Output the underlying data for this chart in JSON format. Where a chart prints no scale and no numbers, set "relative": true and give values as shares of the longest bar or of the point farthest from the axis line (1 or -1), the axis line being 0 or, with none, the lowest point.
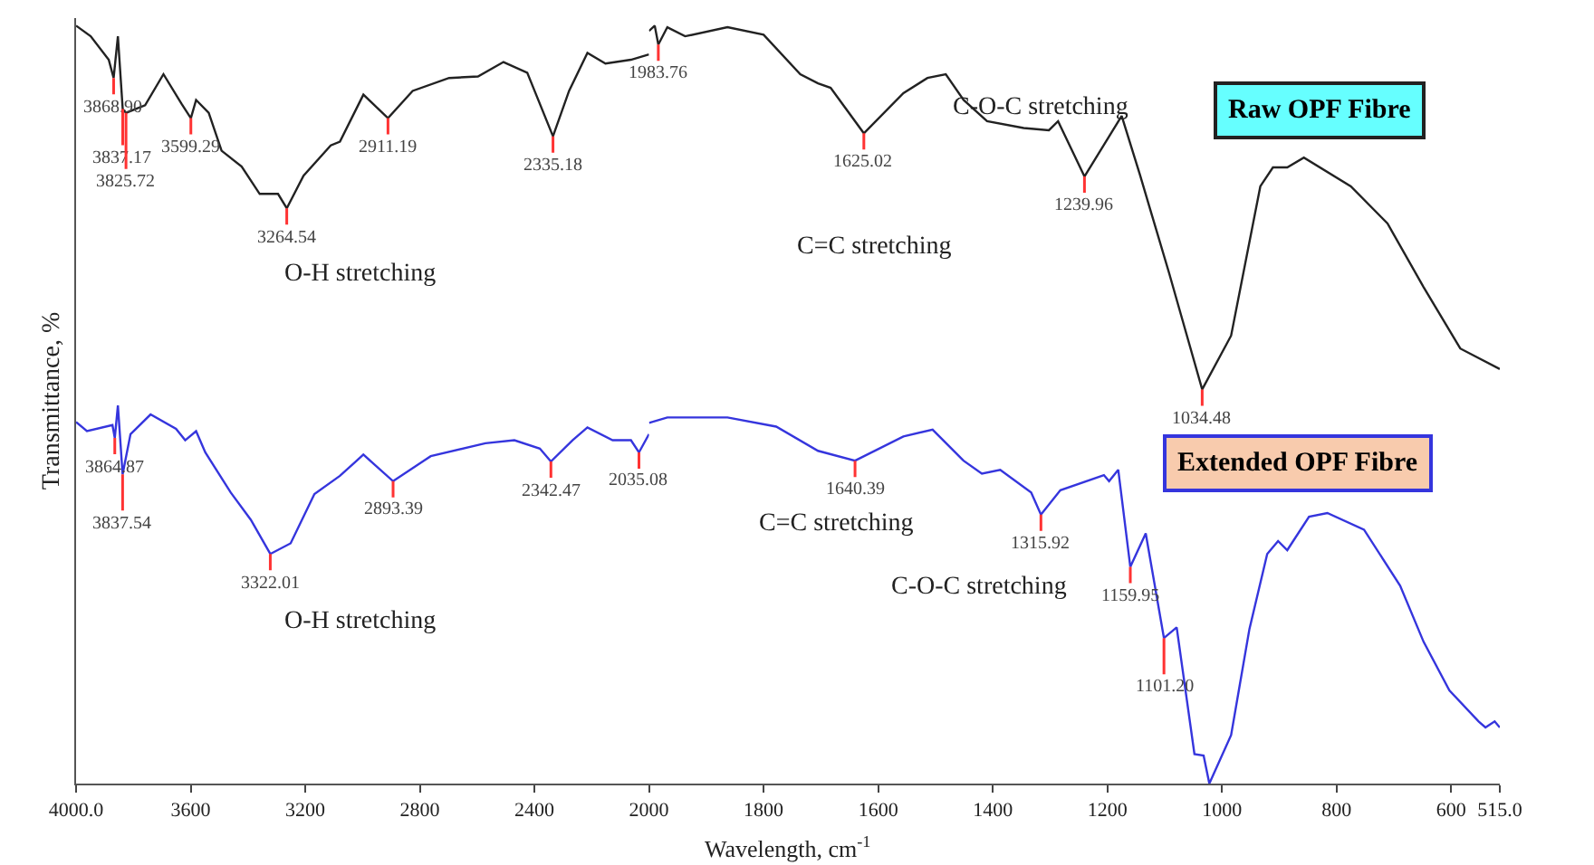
{
  "chart_data": [
    {
      "type": "line",
      "relative": true,
      "ylabel": "Transmittance, %",
      "xlim": [
        4000,
        2000
      ],
      "xticks": [
        {
          "value": 4000,
          "label": "4000.0"
        },
        3600,
        3200,
        2800,
        2400,
        2000
      ],
      "tick_labels": "x",
      "marker": "none",
      "line_style": "solid",
      "series": [
        {
          "color": "#222222",
          "x": [
            4000,
            3949,
            3886,
            3868.9,
            3854,
            3837.17,
            3825.72,
            3759,
            3695,
            3632,
            3599.29,
            3581,
            3537,
            3492,
            3422,
            3359,
            3295,
            3264.54,
            3206,
            3111,
            3079,
            2997,
            2911.19,
            2825,
            2698,
            2597,
            2508,
            2425,
            2335.18,
            2279,
            2215,
            2152,
            2063,
            2000
          ],
          "values": [
            1.0,
            0.986,
            0.955,
            0.931,
            0.986,
            0.89,
            0.885,
            0.895,
            0.936,
            0.897,
            0.878,
            0.902,
            0.885,
            0.835,
            0.814,
            0.778,
            0.778,
            0.759,
            0.802,
            0.842,
            0.847,
            0.909,
            0.878,
            0.914,
            0.931,
            0.933,
            0.952,
            0.938,
            0.854,
            0.914,
            0.964,
            0.95,
            0.955,
            0.962
          ]
        },
        {
          "color": "#3535dd",
          "x": [
            4000,
            3962,
            3873,
            3864.87,
            3854,
            3837.54,
            3810,
            3740,
            3651,
            3619,
            3581,
            3549,
            3460,
            3390,
            3322.01,
            3251,
            3168,
            3079,
            2997,
            2893.39,
            2762,
            2571,
            2470,
            2381,
            2342.47,
            2267,
            2215,
            2127,
            2063,
            2035.08,
            2000
          ],
          "values": [
            0.477,
            0.465,
            0.473,
            0.456,
            0.499,
            0.408,
            0.461,
            0.487,
            0.468,
            0.453,
            0.465,
            0.437,
            0.384,
            0.348,
            0.303,
            0.317,
            0.382,
            0.406,
            0.434,
            0.399,
            0.432,
            0.449,
            0.453,
            0.442,
            0.425,
            0.453,
            0.47,
            0.453,
            0.453,
            0.437,
            0.461
          ]
        }
      ],
      "annotations": [
        {
          "text": "3868.90",
          "x": 3868.9,
          "y": 0.931
        },
        {
          "text": "3837.17",
          "x": 3837.17,
          "y": 0.89
        },
        {
          "text": "3825.72",
          "x": 3825.72,
          "y": 0.885
        },
        {
          "text": "3599.29",
          "x": 3599.29,
          "y": 0.878
        },
        {
          "text": "3264.54",
          "x": 3264.54,
          "y": 0.759
        },
        {
          "text": "2911.19",
          "x": 2911.19,
          "y": 0.878
        },
        {
          "text": "2335.18",
          "x": 2335.18,
          "y": 0.854
        },
        "O-H stretching",
        {
          "text": "3864.87",
          "x": 3864.87,
          "y": 0.456
        },
        {
          "text": "3837.54",
          "x": 3837.54,
          "y": 0.408
        },
        {
          "text": "3322.01",
          "x": 3322.01,
          "y": 0.303
        },
        {
          "text": "2893.39",
          "x": 2893.39,
          "y": 0.399
        },
        {
          "text": "2342.47",
          "x": 2342.47,
          "y": 0.425
        },
        {
          "text": "2035.08",
          "x": 2035.08,
          "y": 0.437
        },
        "O-H stretching"
      ]
    },
    {
      "type": "line",
      "relative": true,
      "xlabel": "Wavelength, cm$^{-1}$",
      "xlim": [
        2000,
        515
      ],
      "xticks": [
        1800,
        1600,
        1400,
        1200,
        1000,
        800,
        600,
        {
          "value": 515,
          "label": "515.0"
        }
      ],
      "tick_labels": "x",
      "legend": "right",
      "marker": "none",
      "line_style": "solid",
      "series": [
        {
          "name": "Raw OPF Fibre",
          "color": "#222222",
          "x": [
            2000,
            1990,
            1983.76,
            1968,
            1937,
            1863,
            1800,
            1736,
            1705,
            1683,
            1625.02,
            1556,
            1514,
            1482,
            1451,
            1410,
            1346,
            1302,
            1286,
            1239.96,
            1175,
            1143,
            1092,
            1048,
            1034.48,
            984,
            933,
            911,
            886,
            857,
            775,
            711,
            648,
            584,
            515
          ],
          "values": [
            0.993,
            1.0,
            0.975,
            0.998,
            0.986,
            0.998,
            0.988,
            0.936,
            0.924,
            0.918,
            0.858,
            0.911,
            0.931,
            0.936,
            0.902,
            0.874,
            0.865,
            0.862,
            0.874,
            0.801,
            0.881,
            0.803,
            0.673,
            0.556,
            0.52,
            0.591,
            0.788,
            0.813,
            0.813,
            0.826,
            0.788,
            0.739,
            0.655,
            0.574,
            0.547
          ]
        },
        {
          "name": "Extended OPF Fibre",
          "color": "#3535dd",
          "x": [
            2000,
            1968,
            1863,
            1778,
            1705,
            1640.39,
            1556,
            1505,
            1451,
            1419,
            1387,
            1333,
            1315.92,
            1282,
            1206,
            1197,
            1181,
            1159.95,
            1133,
            1101.2,
            1079,
            1048,
            1032,
            1022,
            984,
            952,
            921,
            902,
            886,
            848,
            816,
            752,
            689,
            648,
            603,
            552,
            540,
            524,
            515
          ],
          "values": [
            0.476,
            0.483,
            0.483,
            0.471,
            0.439,
            0.426,
            0.458,
            0.467,
            0.426,
            0.409,
            0.414,
            0.384,
            0.355,
            0.387,
            0.407,
            0.399,
            0.414,
            0.286,
            0.33,
            0.192,
            0.206,
            0.039,
            0.037,
            0.0,
            0.064,
            0.204,
            0.303,
            0.32,
            0.308,
            0.352,
            0.357,
            0.335,
            0.261,
            0.187,
            0.123,
            0.082,
            0.074,
            0.082,
            0.074
          ]
        }
      ],
      "annotations": [
        {
          "text": "1983.76",
          "x": 1983.76,
          "y": 0.975
        },
        {
          "text": "1625.02",
          "x": 1625.02,
          "y": 0.858
        },
        {
          "text": "1239.96",
          "x": 1239.96,
          "y": 0.801
        },
        {
          "text": "1034.48",
          "x": 1034.48,
          "y": 0.52
        },
        "C=C stretching",
        "C-O-C stretching",
        {
          "text": "1640.39",
          "x": 1640.39,
          "y": 0.426
        },
        {
          "text": "1315.92",
          "x": 1315.92,
          "y": 0.355
        },
        {
          "text": "1159.95",
          "x": 1159.95,
          "y": 0.286
        },
        {
          "text": "1101.20",
          "x": 1101.2,
          "y": 0.192
        },
        "C=C stretching",
        "C-O-C stretching"
      ]
    }
  ]
}
